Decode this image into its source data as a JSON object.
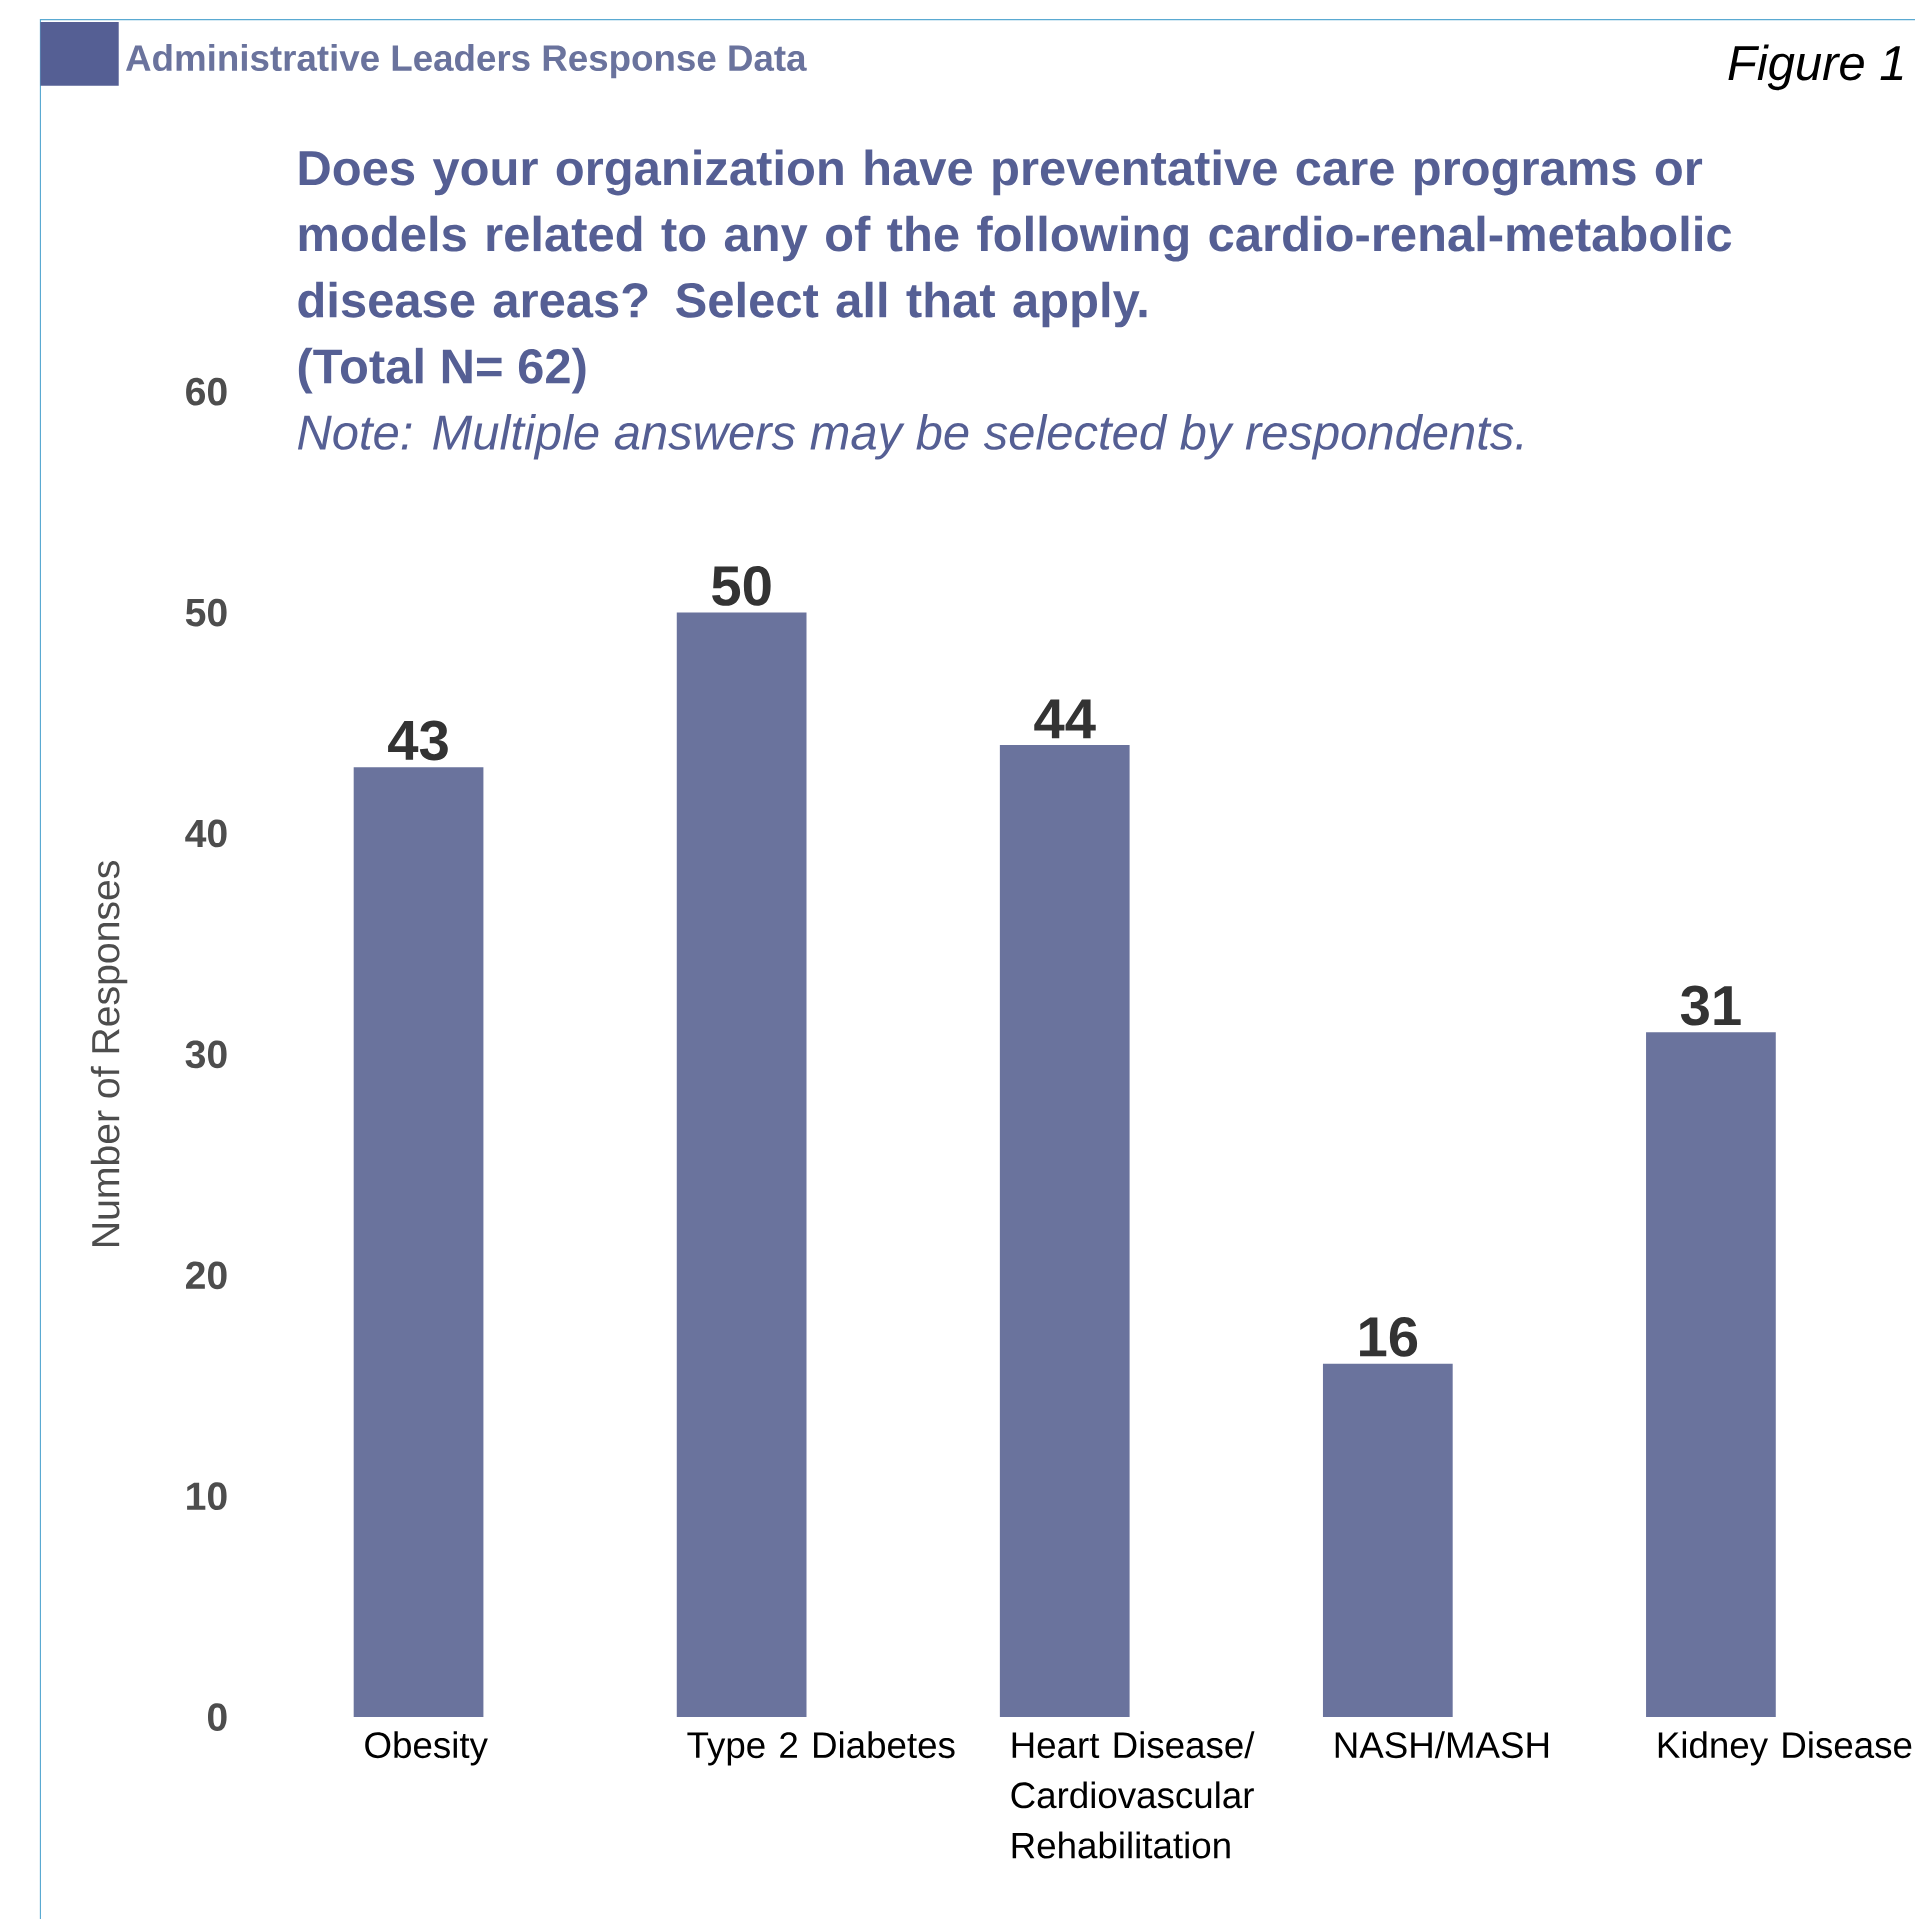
{
  "chart_data": {
    "type": "bar",
    "title": "Does your organization have preventative care programs or models related to any of the following cardio-renal-metabolic disease areas? Select all that apply.",
    "subtitle": "(Total N= 62)",
    "ylabel": "Number of Responses",
    "annotations": [
      "Note: Multiple answers may be selected by respondents.",
      "Administrative Leaders Response Data",
      "Figure 1"
    ],
    "categories": [
      "Obesity",
      "Type 2 Diabetes",
      "Heart Disease/ Cardiovascular Rehabilitation",
      "NASH/MASH",
      "Kidney Disease"
    ],
    "values": [
      43,
      50,
      44,
      16,
      31
    ],
    "color": "#6a739d",
    "ylim": [
      0,
      60
    ],
    "yticks": [
      0,
      10,
      20,
      30,
      40,
      50,
      60
    ],
    "data_labels": true
  }
}
